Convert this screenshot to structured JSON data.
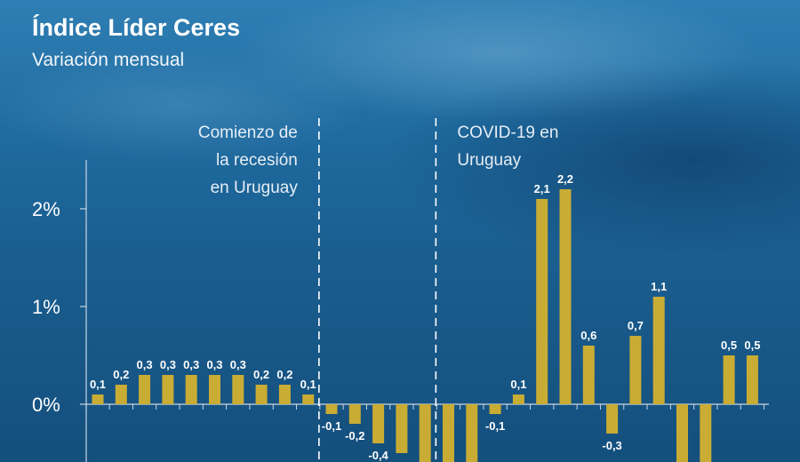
{
  "chart_data": {
    "type": "bar",
    "title": "Índice Líder Ceres",
    "subtitle": "Variación mensual",
    "ylim": [
      -0.7,
      2.5
    ],
    "y_ticks": [
      {
        "value": 0,
        "label": "0%"
      },
      {
        "value": 1,
        "label": "1%"
      },
      {
        "value": 2,
        "label": "2%"
      }
    ],
    "values": [
      0.1,
      0.2,
      0.3,
      0.3,
      0.3,
      0.3,
      0.3,
      0.2,
      0.2,
      0.1,
      -0.1,
      -0.2,
      -0.4,
      -0.5,
      -0.6,
      -0.6,
      -0.6,
      -0.1,
      0.1,
      2.1,
      2.2,
      0.6,
      -0.3,
      0.7,
      1.1,
      -0.6,
      -0.6,
      0.5,
      0.5
    ],
    "value_labels": [
      "0,1",
      "0,2",
      "0,3",
      "0,3",
      "0,3",
      "0,3",
      "0,3",
      "0,2",
      "0,2",
      "0,1",
      "-0,1",
      "-0,2",
      "-0,4",
      "",
      "",
      "",
      "",
      "-0,1",
      "0,1",
      "2,1",
      "2,2",
      "0,6",
      "-0,3",
      "0,7",
      "1,1",
      "",
      "",
      "0,5",
      "0,5"
    ],
    "annotations": [
      {
        "lines": [
          "Comienzo de",
          "la recesión",
          "en Uruguay"
        ],
        "after_bar": 9,
        "align": "right"
      },
      {
        "lines": [
          "COVID-19 en",
          "Uruguay"
        ],
        "after_bar": 14,
        "align": "left"
      }
    ],
    "colors": {
      "bar": "#c9ac34",
      "axis": "#c9d6e2",
      "text": "#ffffff"
    },
    "grid": false,
    "legend": "none"
  }
}
